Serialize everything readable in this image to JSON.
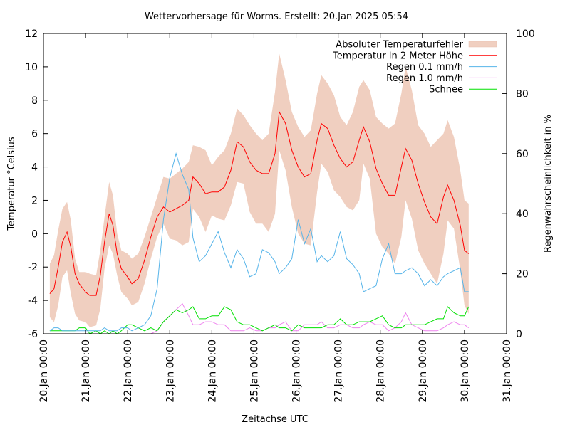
{
  "chart_data": {
    "type": "line",
    "title": "Wettervorhersage für Worms. Erstellt: 20.Jan 2025 05:54",
    "xlabel": "Zeitachse UTC",
    "ylabel": "Temperatur °Celsius",
    "y2label": "Regenwahrscheinlichkeit in %",
    "x_unit": "days since 20.Jan 00:00",
    "xlim": [
      0,
      11
    ],
    "ylim": [
      -6,
      12
    ],
    "y2lim": [
      0,
      100
    ],
    "grid": false,
    "legend_position": "top-right",
    "x_ticks": [
      {
        "value": 0,
        "label": "20.Jan 00:00"
      },
      {
        "value": 1,
        "label": "21.Jan 00:00"
      },
      {
        "value": 2,
        "label": "22.Jan 00:00"
      },
      {
        "value": 3,
        "label": "23.Jan 00:00"
      },
      {
        "value": 4,
        "label": "24.Jan 00:00"
      },
      {
        "value": 5,
        "label": "25.Jan 00:00"
      },
      {
        "value": 6,
        "label": "26.Jan 00:00"
      },
      {
        "value": 7,
        "label": "27.Jan 00:00"
      },
      {
        "value": 8,
        "label": "28.Jan 00:00"
      },
      {
        "value": 9,
        "label": "29.Jan 00:00"
      },
      {
        "value": 10,
        "label": "30.Jan 00:00"
      },
      {
        "value": 11,
        "label": "31.Jan 00:00"
      }
    ],
    "y_ticks": [
      {
        "value": -6,
        "label": "-6"
      },
      {
        "value": -4,
        "label": "-4"
      },
      {
        "value": -2,
        "label": "-2"
      },
      {
        "value": 0,
        "label": "0"
      },
      {
        "value": 2,
        "label": "2"
      },
      {
        "value": 4,
        "label": "4"
      },
      {
        "value": 6,
        "label": "6"
      },
      {
        "value": 8,
        "label": "8"
      },
      {
        "value": 10,
        "label": "10"
      },
      {
        "value": 12,
        "label": "12"
      }
    ],
    "y2_ticks": [
      {
        "value": 0,
        "label": "0"
      },
      {
        "value": 20,
        "label": "20"
      },
      {
        "value": 40,
        "label": "40"
      },
      {
        "value": 60,
        "label": "60"
      },
      {
        "value": 80,
        "label": "80"
      },
      {
        "value": 100,
        "label": "100"
      }
    ],
    "x": [
      0.15,
      0.25,
      0.35,
      0.45,
      0.56,
      0.65,
      0.75,
      0.85,
      1.0,
      1.1,
      1.25,
      1.35,
      1.45,
      1.56,
      1.65,
      1.75,
      1.85,
      2.0,
      2.1,
      2.25,
      2.4,
      2.55,
      2.7,
      2.85,
      3.0,
      3.15,
      3.3,
      3.45,
      3.55,
      3.7,
      3.85,
      4.0,
      4.15,
      4.3,
      4.45,
      4.6,
      4.75,
      4.9,
      5.05,
      5.2,
      5.35,
      5.5,
      5.6,
      5.75,
      5.9,
      6.05,
      6.2,
      6.35,
      6.5,
      6.6,
      6.75,
      6.9,
      7.05,
      7.2,
      7.35,
      7.5,
      7.6,
      7.75,
      7.9,
      8.05,
      8.2,
      8.35,
      8.5,
      8.6,
      8.75,
      8.9,
      9.05,
      9.2,
      9.35,
      9.5,
      9.6,
      9.75,
      9.9,
      10.0,
      10.1
    ],
    "series": [
      {
        "name": "Temperatur in 2 Meter Höhe",
        "color": "#ff0000",
        "axis": "y",
        "values": [
          -3.6,
          -3.3,
          -2.0,
          -0.5,
          0.1,
          -0.8,
          -2.4,
          -3.0,
          -3.5,
          -3.7,
          -3.7,
          -2.5,
          -0.5,
          1.2,
          0.5,
          -1.2,
          -2.1,
          -2.6,
          -3.0,
          -2.7,
          -1.6,
          -0.2,
          1.0,
          1.6,
          1.3,
          1.5,
          1.7,
          2.0,
          3.4,
          3.0,
          2.4,
          2.5,
          2.5,
          2.8,
          3.8,
          5.5,
          5.2,
          4.3,
          3.8,
          3.6,
          3.6,
          4.8,
          7.3,
          6.6,
          5.0,
          4.0,
          3.4,
          3.6,
          5.6,
          6.6,
          6.3,
          5.3,
          4.5,
          4.0,
          4.3,
          5.6,
          6.4,
          5.5,
          3.9,
          3.0,
          2.3,
          2.3,
          4.0,
          5.1,
          4.4,
          3.0,
          1.9,
          1.0,
          0.6,
          2.2,
          2.9,
          2.0,
          0.5,
          -1.0,
          -1.2
        ]
      },
      {
        "name": "Absoluter Temperaturfehler",
        "color": "#f0cfc0",
        "axis": "y",
        "type": "band",
        "upper": [
          -1.8,
          -1.3,
          0.2,
          1.5,
          1.9,
          0.8,
          -1.5,
          -2.3,
          -2.3,
          -2.4,
          -2.5,
          -1.0,
          1.0,
          3.1,
          2.3,
          0.0,
          -1.0,
          -1.2,
          -1.5,
          -1.2,
          -0.2,
          1.0,
          2.2,
          3.4,
          3.3,
          3.6,
          3.9,
          4.3,
          5.3,
          5.2,
          5.0,
          4.1,
          4.6,
          5.0,
          6.0,
          7.5,
          7.1,
          6.5,
          6.0,
          5.6,
          6.0,
          8.5,
          10.8,
          9.2,
          7.3,
          6.4,
          5.8,
          6.2,
          8.4,
          9.5,
          9.0,
          8.3,
          7.0,
          6.5,
          7.3,
          8.8,
          9.2,
          8.6,
          7.0,
          6.6,
          6.3,
          6.6,
          8.4,
          10.0,
          8.6,
          6.5,
          6.0,
          5.2,
          5.6,
          6.0,
          6.8,
          5.8,
          3.8,
          2.0,
          1.8
        ],
        "lower": [
          -5.0,
          -5.3,
          -4.3,
          -2.6,
          -2.2,
          -3.6,
          -4.8,
          -5.2,
          -5.3,
          -5.6,
          -5.5,
          -4.5,
          -2.1,
          -0.7,
          -1.2,
          -2.5,
          -3.5,
          -3.9,
          -4.3,
          -4.1,
          -3.0,
          -1.5,
          -0.2,
          0.6,
          -0.3,
          -0.4,
          -0.7,
          -0.5,
          1.5,
          1.0,
          0.1,
          1.1,
          0.9,
          0.8,
          1.7,
          3.1,
          3.0,
          1.3,
          0.6,
          0.6,
          0.1,
          1.2,
          5.0,
          3.8,
          1.6,
          0.0,
          -0.6,
          -0.7,
          2.5,
          4.2,
          3.7,
          2.6,
          2.2,
          1.6,
          1.4,
          2.0,
          4.2,
          3.3,
          0.0,
          -0.8,
          -1.2,
          -1.8,
          -0.2,
          2.0,
          0.9,
          -1.0,
          -1.8,
          -2.4,
          -3.0,
          -1.2,
          0.8,
          0.3,
          -2.2,
          -4.3,
          -4.8
        ]
      },
      {
        "name": "Regen 0.1 mm/h",
        "color": "#56b4e9",
        "axis": "y2",
        "values": [
          1,
          2,
          2,
          1,
          1,
          1,
          1,
          1,
          1,
          1,
          1,
          1,
          2,
          1,
          1,
          1,
          2,
          2,
          1,
          2,
          3,
          6,
          15,
          38,
          52,
          60,
          53,
          48,
          32,
          24,
          26,
          30,
          34,
          27,
          22,
          28,
          25,
          19,
          20,
          28,
          27,
          24,
          20,
          22,
          25,
          38,
          30,
          35,
          24,
          26,
          24,
          26,
          34,
          25,
          23,
          20,
          14,
          15,
          16,
          25,
          30,
          20,
          20,
          21,
          22,
          20,
          16,
          18,
          16,
          19,
          20,
          21,
          22,
          14,
          14
        ]
      },
      {
        "name": "Regen 1.0 mm/h",
        "color": "#ee82ee",
        "axis": "y2",
        "values": [
          0,
          0,
          0,
          0,
          0,
          0,
          0,
          0,
          0,
          0,
          0,
          0,
          0,
          0,
          0,
          0,
          0,
          0,
          0,
          0,
          0,
          0,
          1,
          4,
          6,
          8,
          10,
          6,
          3,
          3,
          4,
          4,
          3,
          3,
          1,
          1,
          1,
          2,
          1,
          1,
          2,
          2,
          3,
          4,
          1,
          1,
          3,
          3,
          3,
          4,
          2,
          2,
          3,
          3,
          2,
          2,
          3,
          4,
          3,
          3,
          1,
          2,
          4,
          7,
          3,
          2,
          1,
          1,
          1,
          2,
          3,
          4,
          3,
          3,
          2
        ]
      },
      {
        "name": "Schnee",
        "color": "#00e000",
        "axis": "y2",
        "values": [
          1,
          1,
          1,
          1,
          1,
          1,
          1,
          2,
          2,
          0,
          1,
          0,
          1,
          0,
          1,
          0,
          1,
          3,
          3,
          2,
          1,
          2,
          1,
          4,
          6,
          8,
          7,
          8,
          9,
          5,
          5,
          6,
          6,
          9,
          8,
          4,
          3,
          3,
          2,
          1,
          2,
          3,
          2,
          2,
          1,
          3,
          2,
          2,
          2,
          2,
          3,
          3,
          5,
          3,
          3,
          4,
          4,
          4,
          5,
          6,
          3,
          2,
          2,
          3,
          3,
          3,
          3,
          4,
          5,
          5,
          9,
          7,
          6,
          6,
          9
        ]
      }
    ]
  }
}
